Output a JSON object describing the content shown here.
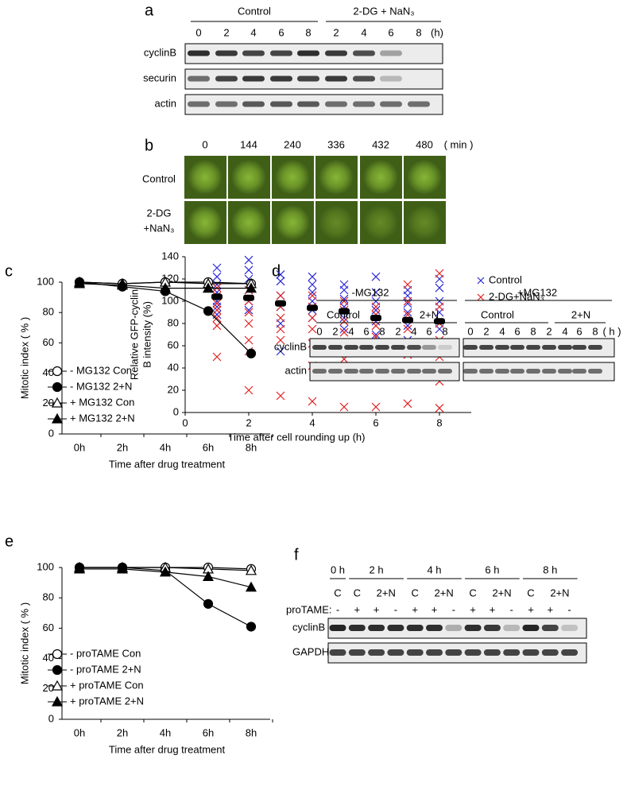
{
  "panel_labels": [
    "a",
    "b",
    "c",
    "d",
    "e",
    "f"
  ],
  "blot_a": {
    "groups": [
      "Control",
      "2-DG + NaN₃"
    ],
    "lanes": [
      "0",
      "2",
      "4",
      "6",
      "8",
      "2",
      "4",
      "6",
      "8"
    ],
    "unit": "(h)",
    "rows": [
      "cyclinB",
      "securin",
      "actin"
    ]
  },
  "images_b": {
    "times": [
      "0",
      "144",
      "240",
      "336",
      "432",
      "480"
    ],
    "unit": "( min )",
    "rows": [
      [
        "Control"
      ],
      [
        "2-DG",
        "+NaN₃"
      ]
    ]
  },
  "blot_d": {
    "groups": [
      "-MG132",
      "+MG132"
    ],
    "subgroups": [
      "Control",
      "2+N",
      "Control",
      "2+N"
    ],
    "lanes": [
      "0",
      "2",
      "4",
      "6",
      "8",
      "2",
      "4",
      "6",
      "8",
      "0",
      "2",
      "4",
      "6",
      "8",
      "2",
      "4",
      "6",
      "8"
    ],
    "unit": "( h )",
    "rows": [
      "cyclinB",
      "actin"
    ]
  },
  "blot_f": {
    "times": [
      "0 h",
      "2 h",
      "4 h",
      "6 h",
      "8 h"
    ],
    "conditions": [
      "C",
      "C",
      "2+N",
      "C",
      "2+N",
      "C",
      "2+N",
      "C",
      "2+N"
    ],
    "treatment_label": "proTAME:",
    "treatment": [
      "-",
      "+",
      "+",
      "-",
      "+",
      "+",
      "-",
      "+",
      "+",
      "-",
      "+",
      "+",
      "-"
    ],
    "rows": [
      "cyclinB",
      "GAPDH"
    ]
  },
  "chart_data": [
    {
      "type": "scatter",
      "xlabel": "Time after cell rounding up (h)",
      "ylabel": [
        "Relative GFP-cyclin",
        "B intensity (%)"
      ],
      "xlim": [
        0,
        9
      ],
      "ylim": [
        0,
        140
      ],
      "xticks": [
        0,
        2,
        4,
        6,
        8
      ],
      "yticks": [
        0,
        20,
        40,
        60,
        80,
        100,
        120,
        140
      ],
      "legend": "right",
      "series": [
        {
          "name": "Control",
          "color": "#2a2ad8",
          "marker": "x",
          "x": [
            1,
            1,
            1,
            1,
            1,
            1,
            1,
            2,
            2,
            2,
            2,
            2,
            2,
            3,
            3,
            3,
            3,
            3,
            3,
            4,
            4,
            4,
            4,
            4,
            4,
            5,
            5,
            5,
            5,
            5,
            5,
            6,
            6,
            6,
            6,
            6,
            6,
            7,
            7,
            7,
            7,
            7,
            7,
            8,
            8,
            8,
            8,
            8,
            8
          ],
          "values": [
            130,
            122,
            115,
            108,
            100,
            95,
            88,
            137,
            128,
            120,
            110,
            100,
            92,
            124,
            118,
            105,
            95,
            80,
            55,
            122,
            115,
            108,
            100,
            92,
            85,
            115,
            110,
            102,
            95,
            85,
            75,
            122,
            108,
            100,
            92,
            82,
            70,
            110,
            105,
            98,
            90,
            78,
            65,
            120,
            112,
            100,
            90,
            75,
            60
          ]
        },
        {
          "name": "2-DG+NaN₃",
          "color": "#e02020",
          "marker": "x",
          "x": [
            1,
            1,
            1,
            1,
            1,
            1,
            1,
            2,
            2,
            2,
            2,
            2,
            2,
            2,
            3,
            3,
            3,
            3,
            3,
            3,
            4,
            4,
            4,
            4,
            4,
            4,
            4,
            5,
            5,
            5,
            5,
            5,
            5,
            5,
            6,
            6,
            6,
            6,
            6,
            6,
            6,
            7,
            7,
            7,
            7,
            7,
            7,
            7,
            8,
            8,
            8,
            8,
            8,
            8,
            8,
            8
          ],
          "values": [
            112,
            105,
            98,
            92,
            85,
            78,
            50,
            110,
            100,
            90,
            80,
            65,
            55,
            20,
            105,
            95,
            85,
            75,
            65,
            15,
            105,
            95,
            85,
            75,
            62,
            42,
            10,
            100,
            92,
            82,
            72,
            60,
            48,
            5,
            95,
            88,
            78,
            68,
            55,
            38,
            5,
            115,
            100,
            88,
            75,
            62,
            52,
            8,
            125,
            95,
            80,
            65,
            50,
            35,
            28,
            4
          ]
        },
        {
          "color": "#000000",
          "marker": "dash",
          "x": [
            1,
            2,
            3,
            4,
            5,
            6,
            7,
            8
          ],
          "values": [
            104,
            103,
            98,
            94,
            91,
            85,
            83,
            82
          ]
        }
      ]
    },
    {
      "type": "line",
      "xlabel": "Time after drug treatment",
      "ylabel": "Mitotic index ( % )",
      "categories": [
        "0h",
        "2h",
        "4h",
        "6h",
        "8h"
      ],
      "ylim": [
        0,
        100
      ],
      "yticks": [
        0,
        20,
        40,
        60,
        80,
        100
      ],
      "legend": "lower left",
      "series": [
        {
          "name": "- MG132 Con",
          "color": "#000000",
          "marker": "circle-open",
          "values": [
            100,
            99,
            100,
            100,
            99
          ]
        },
        {
          "name": "- MG132 2+N",
          "color": "#000000",
          "marker": "circle",
          "values": [
            100,
            97,
            94,
            81,
            53
          ]
        },
        {
          "name": "+ MG132 Con",
          "color": "#000000",
          "marker": "triangle-open",
          "values": [
            100,
            99,
            100,
            99,
            99
          ]
        },
        {
          "name": "+ MG132 2+N",
          "color": "#000000",
          "marker": "triangle",
          "values": [
            99,
            98,
            96,
            96,
            96
          ]
        }
      ]
    },
    {
      "type": "line",
      "xlabel": "Time after drug treatment",
      "ylabel": "Mitotic index ( % )",
      "categories": [
        "0h",
        "2h",
        "4h",
        "6h",
        "8h"
      ],
      "ylim": [
        0,
        100
      ],
      "yticks": [
        0,
        20,
        40,
        60,
        80,
        100
      ],
      "legend": "lower left",
      "series": [
        {
          "name": "- proTAME Con",
          "color": "#000000",
          "marker": "circle-open",
          "values": [
            100,
            100,
            100,
            100,
            99
          ]
        },
        {
          "name": "- proTAME 2+N",
          "color": "#000000",
          "marker": "circle",
          "values": [
            100,
            100,
            98,
            76,
            61
          ]
        },
        {
          "name": "+ proTAME Con",
          "color": "#000000",
          "marker": "triangle-open",
          "values": [
            100,
            100,
            100,
            99,
            98
          ]
        },
        {
          "name": "+ proTAME 2+N",
          "color": "#000000",
          "marker": "triangle",
          "values": [
            99,
            99,
            97,
            94,
            87
          ]
        }
      ]
    }
  ]
}
